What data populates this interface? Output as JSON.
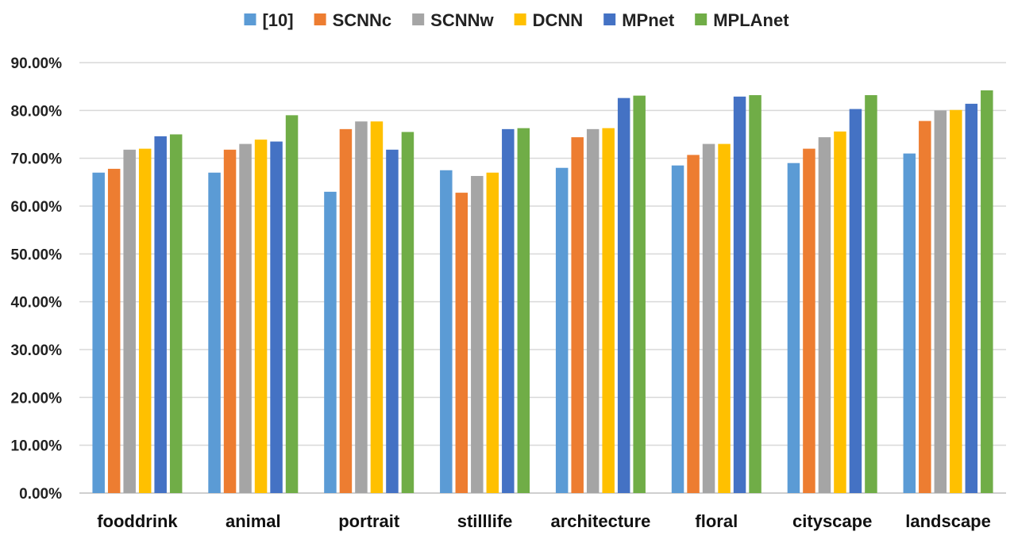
{
  "chart_data": {
    "type": "bar",
    "title": "",
    "xlabel": "",
    "ylabel": "",
    "ylim": [
      0,
      90
    ],
    "y_tick_values": [
      0,
      10,
      20,
      30,
      40,
      50,
      60,
      70,
      80,
      90
    ],
    "y_tick_labels": [
      "0.00%",
      "10.00%",
      "20.00%",
      "30.00%",
      "40.00%",
      "50.00%",
      "60.00%",
      "70.00%",
      "80.00%",
      "90.00%"
    ],
    "grid": true,
    "legend_position": "top",
    "categories": [
      "fooddrink",
      "animal",
      "portrait",
      "stilllife",
      "architecture",
      "floral",
      "cityscape",
      "landscape"
    ],
    "series": [
      {
        "name": "[10]",
        "color": "#5B9BD5",
        "values": [
          67.0,
          67.0,
          63.0,
          67.5,
          68.0,
          68.5,
          69.0,
          71.0
        ]
      },
      {
        "name": "SCNNc",
        "color": "#ED7D31",
        "values": [
          67.8,
          71.8,
          76.1,
          62.8,
          74.4,
          70.7,
          72.0,
          77.8
        ]
      },
      {
        "name": "SCNNw",
        "color": "#A5A5A5",
        "values": [
          71.8,
          73.0,
          77.7,
          66.3,
          76.1,
          73.0,
          74.4,
          80.0
        ]
      },
      {
        "name": "DCNN",
        "color": "#FFC000",
        "values": [
          72.0,
          73.9,
          77.7,
          67.0,
          76.3,
          73.0,
          75.6,
          80.1
        ]
      },
      {
        "name": "MPnet",
        "color": "#4472C4",
        "values": [
          74.6,
          73.5,
          71.8,
          76.1,
          82.6,
          82.9,
          80.3,
          81.4
        ]
      },
      {
        "name": "MPLAnet",
        "color": "#70AD47",
        "values": [
          75.0,
          79.0,
          75.5,
          76.3,
          83.1,
          83.2,
          83.2,
          84.2
        ]
      }
    ]
  }
}
